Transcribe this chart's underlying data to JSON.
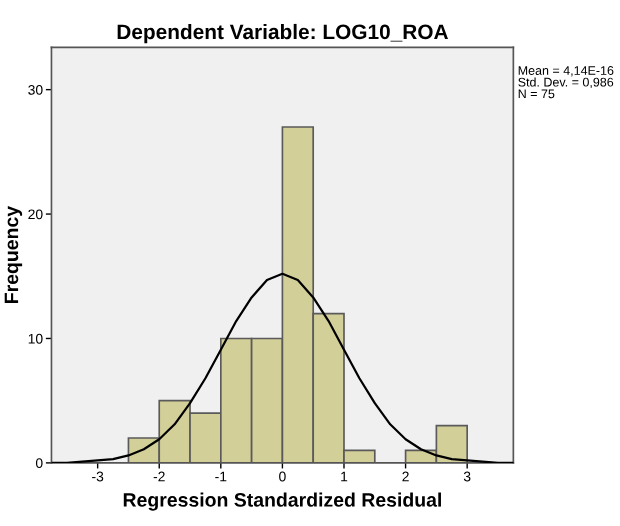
{
  "chart_data": {
    "type": "histogram",
    "title": "Dependent Variable: LOG10_ROA",
    "xlabel": "Regression Standardized Residual",
    "ylabel": "Frequency",
    "annotations": [
      "Mean = 4,14E-16\nStd. Dev. = 0,986\nN = 75"
    ],
    "xlim": [
      -3.75,
      3.75
    ],
    "ylim": [
      0,
      33.4
    ],
    "xticks": [
      -3,
      -2,
      -1,
      0,
      1,
      2,
      3
    ],
    "yticks": [
      0,
      10,
      20,
      30
    ],
    "grid": false,
    "legend": false,
    "series": [
      {
        "color": "#d3cf98",
        "bins": [
          -2.5,
          -2,
          -1.5,
          -1,
          -0.5,
          0,
          0.5,
          1,
          1.5,
          2,
          2.5,
          3
        ],
        "values": [
          2,
          5,
          4,
          10,
          10,
          27,
          12,
          1,
          0,
          1,
          3
        ]
      },
      {
        "type": "line",
        "color": "#000000",
        "x": [
          -3.75,
          -3.5,
          -3.25,
          -3,
          -2.75,
          -2.5,
          -2.25,
          -2,
          -1.75,
          -1.5,
          -1.25,
          -1,
          -0.75,
          -0.5,
          -0.25,
          0,
          0.25,
          0.5,
          0.75,
          1,
          1.25,
          1.5,
          1.75,
          2,
          2.25,
          2.5,
          2.75,
          3,
          3.25,
          3.5,
          3.75
        ],
        "values": [
          0.0,
          0.0,
          0.1,
          0.2,
          0.3,
          0.6,
          1.1,
          1.9,
          3.1,
          4.8,
          6.8,
          9.1,
          11.4,
          13.3,
          14.7,
          15.2,
          14.7,
          13.3,
          11.4,
          9.1,
          6.8,
          4.8,
          3.1,
          1.9,
          1.1,
          0.6,
          0.3,
          0.2,
          0.1,
          0.0,
          0.0
        ]
      }
    ]
  }
}
